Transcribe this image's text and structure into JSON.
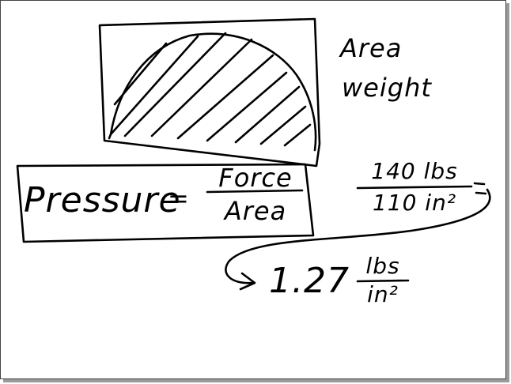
{
  "whiteboard": {
    "side_labels": [
      "Area",
      "weight"
    ],
    "formula": {
      "lhs": "Pressure",
      "equals": "=",
      "numerator": "Force",
      "denominator": "Area"
    },
    "calculation": {
      "numerator": "140 lbs",
      "denominator": "110 in²",
      "equals": "=",
      "result_value": "1.27",
      "result_unit_numerator": "lbs",
      "result_unit_denominator": "in²"
    },
    "ink_color": "#000000"
  }
}
